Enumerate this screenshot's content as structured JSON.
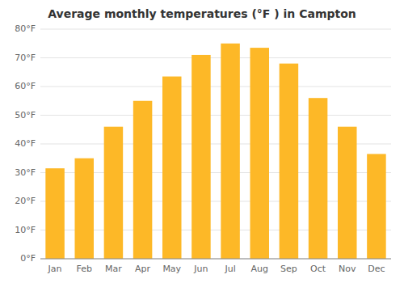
{
  "chart_data": {
    "type": "bar",
    "title": "Average monthly temperatures (°F ) in Campton",
    "categories": [
      "Jan",
      "Feb",
      "Mar",
      "Apr",
      "May",
      "Jun",
      "Jul",
      "Aug",
      "Sep",
      "Oct",
      "Nov",
      "Dec"
    ],
    "values": [
      31.5,
      35.0,
      46.0,
      55.0,
      63.5,
      71.0,
      75.0,
      73.5,
      68.0,
      56.0,
      46.0,
      36.5
    ],
    "color": "#FDB827",
    "ylim": [
      0,
      80
    ],
    "yticks": [
      {
        "value": 0,
        "label": "0°F"
      },
      {
        "value": 10,
        "label": "10°F"
      },
      {
        "value": 20,
        "label": "20°F"
      },
      {
        "value": 30,
        "label": "30°F"
      },
      {
        "value": 40,
        "label": "40°F"
      },
      {
        "value": 50,
        "label": "50°F"
      },
      {
        "value": 60,
        "label": "60°F"
      },
      {
        "value": 70,
        "label": "70°F"
      },
      {
        "value": 80,
        "label": "80°F"
      }
    ],
    "grid": true
  }
}
